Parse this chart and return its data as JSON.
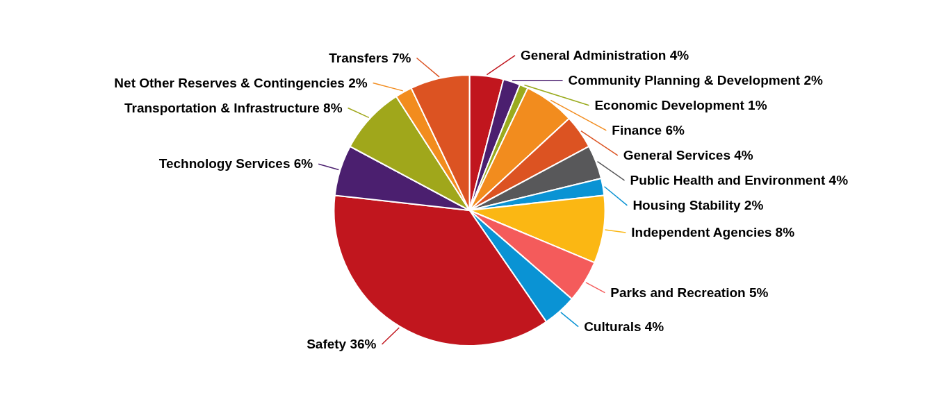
{
  "chart_data": {
    "type": "pie",
    "categories": [
      "General Administration",
      "Community Planning & Development",
      "Economic Development",
      "Finance",
      "General Services",
      "Public Health and Environment",
      "Housing Stability",
      "Independent Agencies",
      "Parks and Recreation",
      "Culturals",
      "Safety",
      "Technology Services",
      "Transportation & Infrastructure",
      "Net Other Reserves & Contingencies",
      "Transfers"
    ],
    "values": [
      4,
      2,
      1,
      6,
      4,
      4,
      2,
      8,
      5,
      4,
      36,
      6,
      8,
      2,
      7
    ],
    "value_labels": [
      "4%",
      "2%",
      "1%",
      "6%",
      "4%",
      "4%",
      "2%",
      "8%",
      "5%",
      "4%",
      "36%",
      "6%",
      "8%",
      "2%",
      "7%"
    ],
    "colors": [
      "#c1161e",
      "#4b1f6f",
      "#9aab1e",
      "#f28c1e",
      "#dc5322",
      "#58585a",
      "#0a93d4",
      "#fbb713",
      "#f45b5b",
      "#0a93d4",
      "#c1161e",
      "#4b1f6f",
      "#a0a71b",
      "#f28c1e",
      "#dc5322"
    ]
  }
}
